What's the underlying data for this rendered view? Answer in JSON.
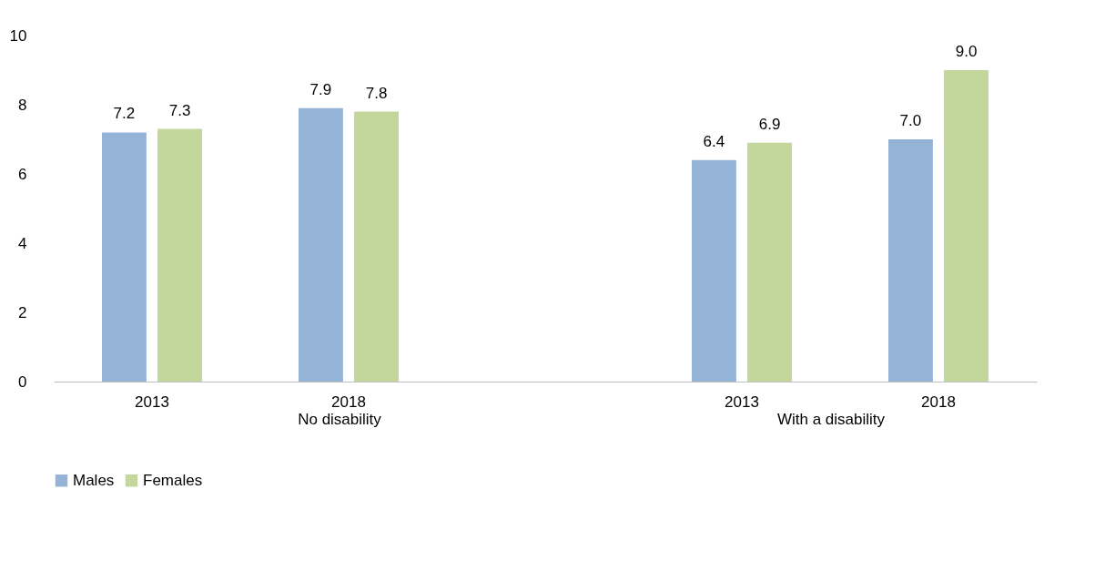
{
  "chart_data": {
    "type": "bar",
    "categories": [
      "2013",
      "2018",
      null,
      "2013",
      "2018"
    ],
    "series": [
      {
        "name": "Males",
        "color": "#95b3d7",
        "values": [
          7.2,
          7.9,
          null,
          6.4,
          7.0
        ],
        "value_labels": [
          "7.2",
          "7.9",
          null,
          "6.4",
          "7.0"
        ]
      },
      {
        "name": "Females",
        "color": "#c3d69b",
        "values": [
          7.3,
          7.8,
          null,
          6.9,
          9.0
        ],
        "value_labels": [
          "7.3",
          "7.8",
          null,
          "6.9",
          "9.0"
        ]
      }
    ],
    "ylim": [
      0,
      10
    ],
    "yticks": [
      0,
      2,
      4,
      6,
      8,
      10
    ],
    "grid": false,
    "legend": "bottom",
    "annotations": [
      "No disability",
      "With a disability"
    ]
  }
}
